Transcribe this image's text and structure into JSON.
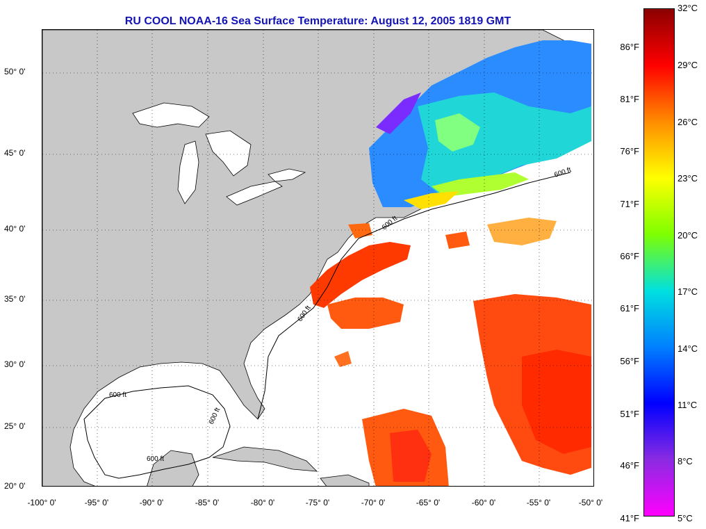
{
  "title": "RU COOL  NOAA-16  Sea Surface Temperature:  August 12, 2005 1819 GMT",
  "map": {
    "lat_labels": [
      "50° 0'",
      "45° 0'",
      "40° 0'",
      "35° 0'",
      "30° 0'",
      "25° 0'",
      "20° 0'"
    ],
    "lon_labels": [
      "-100° 0'",
      "-95° 0'",
      "-90° 0'",
      "-85° 0'",
      "-80° 0'",
      "-75° 0'",
      "-70° 0'",
      "-65° 0'",
      "-60° 0'",
      "-55° 0'",
      "-50° 0'"
    ],
    "contour_label": "600 ft",
    "land_color": "#c8c8c8",
    "ocean_nodata_color": "#ffffff"
  },
  "colorbar": {
    "fahrenheit_labels": [
      "86°F",
      "81°F",
      "76°F",
      "71°F",
      "66°F",
      "61°F",
      "56°F",
      "51°F",
      "46°F",
      "41°F"
    ],
    "celsius_labels": [
      "32°C",
      "29°C",
      "26°C",
      "23°C",
      "20°C",
      "17°C",
      "14°C",
      "11°C",
      "8°C",
      "5°C"
    ],
    "colors": [
      "#8b0000",
      "#ff0000",
      "#ff8c00",
      "#ffff00",
      "#7fff00",
      "#00e0e0",
      "#0080ff",
      "#0000ff",
      "#8a2be2",
      "#ff00ff"
    ]
  }
}
